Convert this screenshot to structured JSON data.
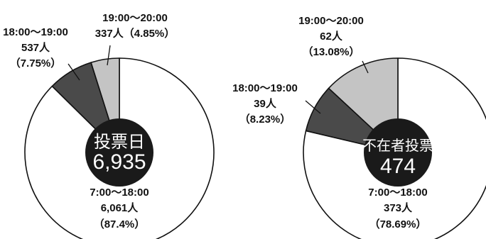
{
  "chart_data": [
    {
      "type": "pie",
      "center_label": "投票日",
      "center_value": "6,935",
      "slices": [
        {
          "label": "7:00〜18:00",
          "count": "6,061人",
          "percent_label": "（87.4%）",
          "value": 87.4
        },
        {
          "label": "18:00〜19:00",
          "count": "537人",
          "percent_label": "（7.75%）",
          "value": 7.75
        },
        {
          "label": "19:00〜20:00",
          "count": "337人",
          "percent_label": "（4.85%）",
          "value": 4.85
        }
      ]
    },
    {
      "type": "pie",
      "center_label": "不在者投票",
      "center_value": "474",
      "slices": [
        {
          "label": "7:00〜18:00",
          "count": "373人",
          "percent_label": "（78.69%）",
          "value": 78.69
        },
        {
          "label": "18:00〜19:00",
          "count": "39人",
          "percent_label": "（8.23%）",
          "value": 8.23
        },
        {
          "label": "19:00〜20:00",
          "count": "62人",
          "percent_label": "（13.08%）",
          "value": 13.08
        }
      ]
    }
  ],
  "colors": {
    "slice_day": "#ffffff",
    "slice_1800": "#4a4a4a",
    "slice_1900": "#c4c4c4",
    "center_disc": "#1a1a1a",
    "outline": "#111111",
    "text": "#111111",
    "center_text": "#ffffff"
  }
}
